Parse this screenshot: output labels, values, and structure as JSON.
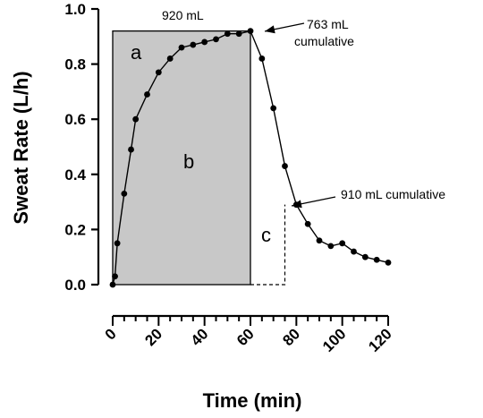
{
  "chart_data": {
    "type": "line",
    "xlabel": "Time (min)",
    "ylabel": "Sweat Rate (L/h)",
    "xlim": [
      0,
      120
    ],
    "ylim": [
      0,
      1.0
    ],
    "x_ticks": [
      "0",
      "20",
      "40",
      "60",
      "80",
      "100",
      "120"
    ],
    "y_ticks": [
      "0.0",
      "0.2",
      "0.4",
      "0.6",
      "0.8",
      "1.0"
    ],
    "grid": false,
    "series": [
      {
        "x": [
          0,
          1,
          2,
          5,
          8,
          10,
          15,
          20,
          25,
          30,
          35,
          40,
          45,
          50,
          55,
          60,
          65,
          70,
          75,
          80,
          85,
          90,
          95,
          100,
          105,
          110,
          115,
          120
        ],
        "y": [
          0.0,
          0.03,
          0.15,
          0.33,
          0.49,
          0.6,
          0.69,
          0.77,
          0.82,
          0.86,
          0.87,
          0.88,
          0.89,
          0.91,
          0.91,
          0.92,
          0.82,
          0.64,
          0.43,
          0.29,
          0.22,
          0.16,
          0.14,
          0.15,
          0.12,
          0.1,
          0.09,
          0.08
        ]
      }
    ],
    "shaded_region": {
      "x": [
        0,
        60
      ],
      "y": [
        0,
        0.92
      ],
      "color": "#c8c8c8"
    },
    "dashed_region": {
      "x": [
        60,
        75
      ],
      "y": [
        0,
        0.29
      ]
    },
    "annotations": {
      "top_total": "920 mL",
      "arrow_1_line1": "763 mL",
      "arrow_1_line2": "cumulative",
      "arrow_2": "910 mL cumulative",
      "region_a": "a",
      "region_b": "b",
      "region_c": "c"
    },
    "colors": {
      "line": "#000000",
      "shade": "#c8c8c8"
    }
  }
}
